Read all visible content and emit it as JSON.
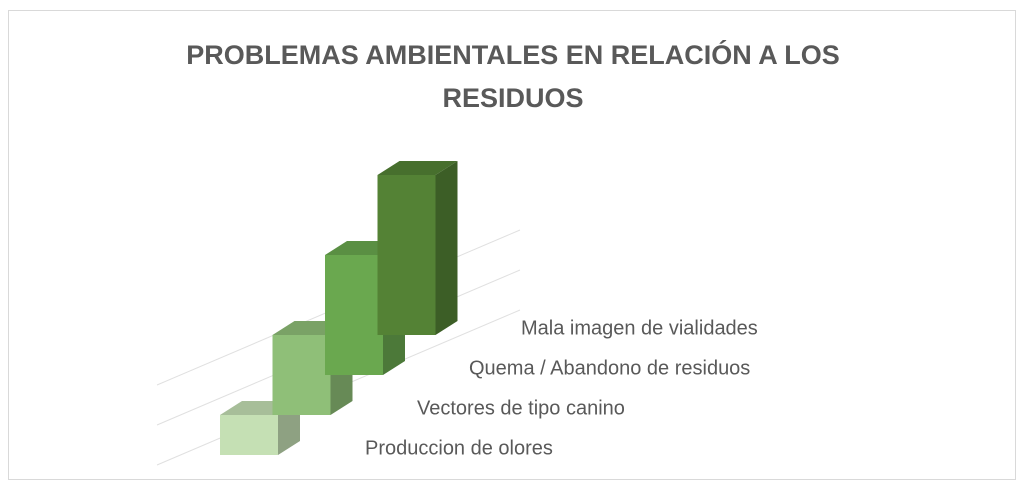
{
  "chart_data": {
    "type": "bar3d",
    "title": "PROBLEMAS AMBIENTALES EN RELACIÓN A LOS RESIDUOS",
    "categories": [
      "Produccion de olores",
      "Vectores de tipo canino",
      "Quema / Abandono de residuos",
      "Mala imagen de vialidades"
    ],
    "values": [
      1,
      2,
      3,
      4
    ],
    "colors": [
      "#c5e0b4",
      "#8fbf78",
      "#6aa84f",
      "#548235"
    ],
    "ylim": [
      0,
      4
    ],
    "yticks": [
      0,
      2,
      4
    ],
    "grid": true
  }
}
